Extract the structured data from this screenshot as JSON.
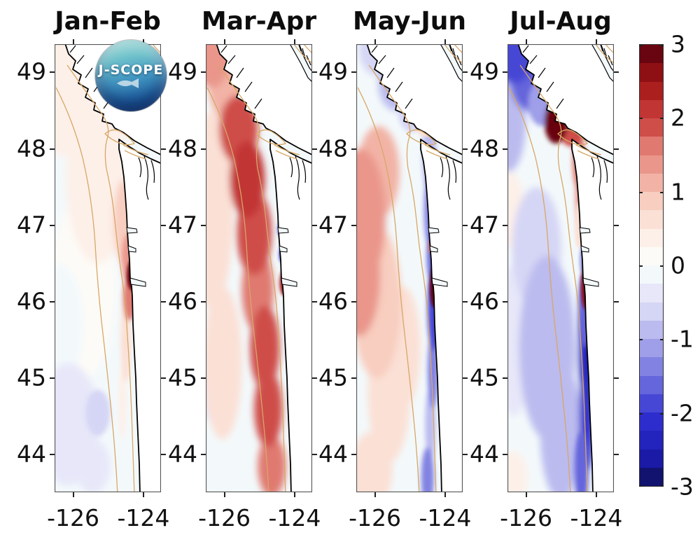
{
  "figure": {
    "background": "#ffffff",
    "text_color": "#111111",
    "land_color": "#ffffff",
    "sea_color": "#f3f9fb",
    "coastline_color": "#000000",
    "contour_color": "#d7a766",
    "frame_color": "#555555"
  },
  "logo": {
    "text": "J-SCOPE"
  },
  "chart_data": {
    "type": "heatmap",
    "description": "Four-panel map figure of modeled ocean anomalies off the Washington/Oregon coast (J-SCOPE), bimonthly panels with shared diverging colorbar from -3 to 3.",
    "x_axis": {
      "label": "",
      "ticks": [
        -126,
        -124
      ],
      "range": [
        -126.53,
        -123.5
      ]
    },
    "y_axis": {
      "label": "",
      "ticks": [
        49,
        48,
        47,
        46,
        45,
        44
      ],
      "range": [
        43.51,
        49.37
      ]
    },
    "colorbar": {
      "min": -3,
      "max": 3,
      "step": 0.25,
      "ticks": [
        3,
        2,
        1,
        0,
        -1,
        -2,
        -3
      ],
      "colors": [
        "#12126f",
        "#1a1aa6",
        "#2323bd",
        "#2d2dcd",
        "#4747d6",
        "#6565dc",
        "#8282e2",
        "#9e9ee9",
        "#bbbbef",
        "#d5d5f5",
        "#e7e7f9",
        "#f3f9fb",
        "#fdfbf7",
        "#fdf0e9",
        "#fbe0d5",
        "#f8cec0",
        "#f2b3a6",
        "#ea968b",
        "#e07a71",
        "#cf4e4a",
        "#c23535",
        "#ab1f1f",
        "#8f1014",
        "#690510"
      ]
    },
    "anomaly_columns": [
      "lon",
      "lat",
      "value",
      "extent_lon_deg",
      "extent_lat_deg"
    ],
    "panels": [
      {
        "title": "Jan-Feb",
        "anomalies": [
          [
            -126.2,
            48.8,
            0.4,
            1.1,
            0.9
          ],
          [
            -125.3,
            47.6,
            0.35,
            0.9,
            1.1
          ],
          [
            -125.7,
            46.2,
            0.2,
            0.9,
            1.2
          ],
          [
            -124.55,
            47.05,
            0.9,
            0.3,
            0.55
          ],
          [
            -124.4,
            46.55,
            1.4,
            0.22,
            0.35
          ],
          [
            -124.32,
            46.35,
            2.8,
            0.15,
            0.2
          ],
          [
            -124.4,
            46.05,
            1.5,
            0.18,
            0.3
          ],
          [
            -124.5,
            45.5,
            0.6,
            0.15,
            0.55
          ],
          [
            -124.6,
            44.7,
            0.4,
            0.12,
            0.5
          ],
          [
            -124.6,
            48.35,
            0.5,
            0.3,
            0.13
          ],
          [
            -126.15,
            44.4,
            -0.35,
            0.9,
            0.8
          ],
          [
            -126.4,
            45.7,
            -0.2,
            0.7,
            0.8
          ],
          [
            -125.3,
            44.55,
            -0.55,
            0.35,
            0.3
          ],
          [
            -125.45,
            43.85,
            -0.4,
            0.5,
            0.35
          ]
        ]
      },
      {
        "title": "Mar-Apr",
        "anomalies": [
          [
            -126.35,
            49.2,
            1.3,
            0.5,
            0.4
          ],
          [
            -125.95,
            48.8,
            1.2,
            0.5,
            0.4
          ],
          [
            -125.6,
            48.25,
            1.9,
            0.55,
            0.45
          ],
          [
            -125.35,
            47.6,
            2.0,
            0.5,
            0.5
          ],
          [
            -125.15,
            46.9,
            1.8,
            0.5,
            0.55
          ],
          [
            -125.05,
            46.15,
            1.7,
            0.45,
            0.55
          ],
          [
            -124.85,
            45.4,
            1.9,
            0.42,
            0.55
          ],
          [
            -124.75,
            44.6,
            1.8,
            0.4,
            0.5
          ],
          [
            -124.65,
            43.85,
            1.6,
            0.4,
            0.4
          ],
          [
            -126.35,
            47.2,
            0.7,
            0.6,
            1.3
          ],
          [
            -126.05,
            45.2,
            0.5,
            0.55,
            1.0
          ],
          [
            -124.3,
            46.25,
            2.3,
            0.13,
            0.17
          ],
          [
            -123.85,
            48.3,
            -0.7,
            0.28,
            0.12
          ],
          [
            -124.42,
            46.95,
            -1.8,
            0.06,
            0.08
          ],
          [
            -124.38,
            46.62,
            -2.2,
            0.06,
            0.1
          ],
          [
            -126.4,
            44.9,
            -0.45,
            0.45,
            0.45
          ]
        ]
      },
      {
        "title": "May-Jun",
        "anomalies": [
          [
            -126.4,
            47.1,
            1.3,
            0.7,
            0.9
          ],
          [
            -126.45,
            46.35,
            1.4,
            0.6,
            0.8
          ],
          [
            -125.9,
            47.7,
            1.1,
            0.6,
            0.6
          ],
          [
            -125.95,
            46.0,
            0.9,
            0.7,
            1.0
          ],
          [
            -125.6,
            44.8,
            0.6,
            0.6,
            0.9
          ],
          [
            -126.1,
            43.8,
            0.7,
            0.6,
            0.5
          ],
          [
            -125.2,
            45.4,
            0.5,
            0.5,
            0.8
          ],
          [
            -125.9,
            49.3,
            -0.7,
            0.55,
            0.35
          ],
          [
            -125.4,
            48.85,
            -0.9,
            0.5,
            0.35
          ],
          [
            -124.95,
            48.5,
            -0.7,
            0.4,
            0.28
          ],
          [
            -124.45,
            47.9,
            -0.9,
            0.2,
            0.5
          ],
          [
            -124.42,
            47.2,
            -1.3,
            0.18,
            0.5
          ],
          [
            -124.38,
            46.6,
            -1.6,
            0.14,
            0.35
          ],
          [
            -124.32,
            45.9,
            -1.9,
            0.18,
            0.55
          ],
          [
            -124.35,
            45.1,
            -1.3,
            0.15,
            0.5
          ],
          [
            -124.42,
            44.4,
            -1.0,
            0.15,
            0.5
          ],
          [
            -124.5,
            43.7,
            -1.4,
            0.18,
            0.4
          ],
          [
            -124.3,
            46.2,
            2.9,
            0.14,
            0.28
          ],
          [
            -124.42,
            46.72,
            1.6,
            0.06,
            0.09
          ],
          [
            -124.55,
            48.3,
            0.6,
            0.3,
            0.14
          ]
        ]
      },
      {
        "title": "Jul-Aug",
        "anomalies": [
          [
            -126.35,
            49.25,
            -1.9,
            0.6,
            0.4
          ],
          [
            -125.9,
            48.9,
            -1.7,
            0.55,
            0.4
          ],
          [
            -126.5,
            48.4,
            -1.0,
            0.5,
            0.7
          ],
          [
            -125.55,
            48.6,
            -1.2,
            0.4,
            0.3
          ],
          [
            -125.15,
            48.35,
            2.9,
            0.33,
            0.28
          ],
          [
            -124.7,
            48.2,
            1.9,
            0.33,
            0.17
          ],
          [
            -124.5,
            47.85,
            1.7,
            0.18,
            0.4
          ],
          [
            -124.45,
            47.4,
            1.3,
            0.15,
            0.4
          ],
          [
            -124.5,
            47.0,
            0.7,
            0.12,
            0.3
          ],
          [
            -124.05,
            48.22,
            -0.9,
            0.22,
            0.12
          ],
          [
            -124.3,
            46.2,
            2.7,
            0.14,
            0.3
          ],
          [
            -124.38,
            46.55,
            -1.1,
            0.1,
            0.2
          ],
          [
            -124.32,
            45.9,
            -1.7,
            0.2,
            0.5
          ],
          [
            -124.28,
            45.3,
            -2.3,
            0.22,
            0.6
          ],
          [
            -124.28,
            44.5,
            -2.1,
            0.2,
            0.7
          ],
          [
            -124.42,
            43.8,
            -1.6,
            0.2,
            0.5
          ],
          [
            -125.4,
            45.4,
            -0.8,
            0.8,
            1.2
          ],
          [
            -125.0,
            44.3,
            -0.8,
            0.6,
            0.9
          ],
          [
            -125.7,
            46.7,
            -0.6,
            0.7,
            0.8
          ],
          [
            -126.35,
            45.5,
            -0.4,
            0.5,
            1.0
          ],
          [
            -126.45,
            47.2,
            0.35,
            0.4,
            0.5
          ],
          [
            -126.4,
            43.7,
            0.4,
            0.45,
            0.35
          ]
        ]
      }
    ]
  }
}
